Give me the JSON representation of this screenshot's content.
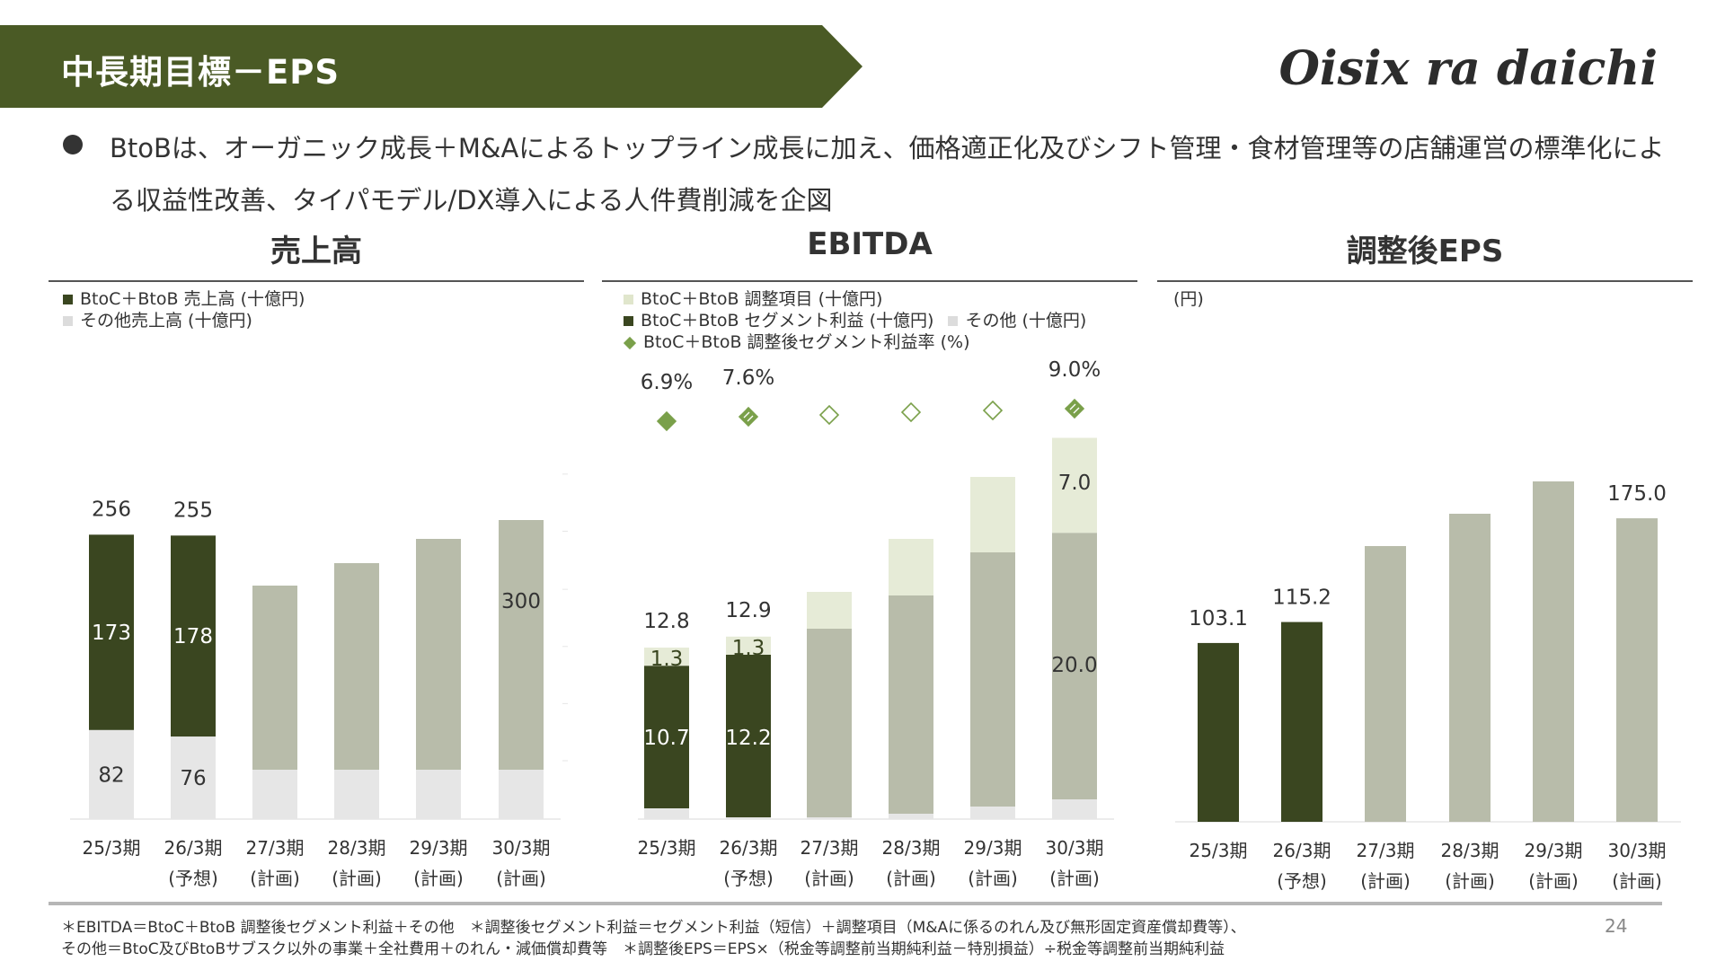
{
  "header": {
    "title": "中長期目標－EPS",
    "logo": "Oisix ra daichi"
  },
  "bullet": "BtoBは、オーガニック成長＋M&Aによるトップライン成長に加え、価格適正化及びシフト管理・食材管理等の店舗運営の標準化による収益性改善、タイパモデル/DX導入による人件費削減を企図",
  "colors": {
    "dark": "#3a4620",
    "grey": "#b8bcaa",
    "light": "#e6e6e6",
    "pale": "#e6ebd7",
    "diamond": "#7aa04a",
    "brand": "#4a5a25"
  },
  "sections": {
    "revenue": {
      "title": "売上高",
      "legend": [
        "BtoC＋BtoB 売上高 (十億円)",
        "その他売上高 (十億円)"
      ]
    },
    "ebitda": {
      "title": "EBITDA",
      "legend": [
        "BtoC＋BtoB 調整項目 (十億円)",
        "BtoC＋BtoB セグメント利益 (十億円)",
        "その他 (十億円)",
        "BtoC＋BtoB 調整後セグメント利益率 (%)"
      ]
    },
    "eps": {
      "title": "調整後EPS",
      "unit": "(円)"
    }
  },
  "chart_data": [
    {
      "type": "bar",
      "title": "売上高",
      "categories": [
        [
          "25/3期"
        ],
        [
          "26/3期",
          "(予想)"
        ],
        [
          "27/3期",
          "(計画)"
        ],
        [
          "28/3期",
          "(計画)"
        ],
        [
          "29/3期",
          "(計画)"
        ],
        [
          "30/3期",
          "(計画)"
        ]
      ],
      "series": [
        {
          "name": "BtoC＋BtoB 売上高 (十億円)",
          "values": [
            173,
            178,
            null,
            null,
            null,
            null
          ]
        },
        {
          "name": "その他売上高 (十億円)",
          "values": [
            82,
            76,
            null,
            null,
            null,
            null
          ]
        }
      ],
      "totals": [
        256,
        255,
        null,
        null,
        null,
        null
      ],
      "plan_label": "300"
    },
    {
      "type": "bar",
      "title": "EBITDA",
      "categories": [
        [
          "25/3期"
        ],
        [
          "26/3期",
          "(予想)"
        ],
        [
          "27/3期",
          "(計画)"
        ],
        [
          "28/3期",
          "(計画)"
        ],
        [
          "29/3期",
          "(計画)"
        ],
        [
          "30/3期",
          "(計画)"
        ]
      ],
      "series": [
        {
          "name": "BtoC＋BtoB セグメント利益 (十億円)",
          "values": [
            10.7,
            12.2,
            null,
            null,
            null,
            20.0
          ]
        },
        {
          "name": "BtoC＋BtoB 調整項目 (十億円)",
          "values": [
            1.3,
            1.3,
            null,
            null,
            null,
            7.0
          ]
        }
      ],
      "totals": [
        12.8,
        12.9,
        null,
        null,
        null,
        null
      ],
      "margin_pct": [
        6.9,
        7.6,
        null,
        null,
        null,
        9.0
      ],
      "margin_labels": [
        "6.9%",
        "7.6%",
        "",
        "",
        "",
        "9.0%"
      ],
      "value_labels": {
        "segment": [
          "10.7",
          "12.2",
          "",
          "",
          "",
          "20.0"
        ],
        "adjust": [
          "1.3",
          "1.3",
          "",
          "",
          "",
          "7.0"
        ],
        "total": [
          "12.8",
          "12.9",
          "",
          "",
          "",
          ""
        ]
      }
    },
    {
      "type": "bar",
      "title": "調整後EPS",
      "unit": "円",
      "categories": [
        [
          "25/3期"
        ],
        [
          "26/3期",
          "(予想)"
        ],
        [
          "27/3期",
          "(計画)"
        ],
        [
          "28/3期",
          "(計画)"
        ],
        [
          "29/3期",
          "(計画)"
        ],
        [
          "30/3期",
          "(計画)"
        ]
      ],
      "values": [
        103.1,
        115.2,
        null,
        null,
        null,
        175.0
      ],
      "value_labels": [
        "103.1",
        "115.2",
        "",
        "",
        "",
        "175.0"
      ]
    }
  ],
  "footnotes": [
    "＊EBITDA＝BtoC＋BtoB 調整後セグメント利益＋その他　＊調整後セグメント利益＝セグメント利益（短信）＋調整項目（M&Aに係るのれん及び無形固定資産償却費等）、",
    "その他＝BtoC及びBtoBサブスク以外の事業＋全社費用＋のれん・減価償却費等　＊調整後EPS＝EPS×（税金等調整前当期純利益－特別損益）÷税金等調整前当期純利益"
  ],
  "page_number": "24"
}
